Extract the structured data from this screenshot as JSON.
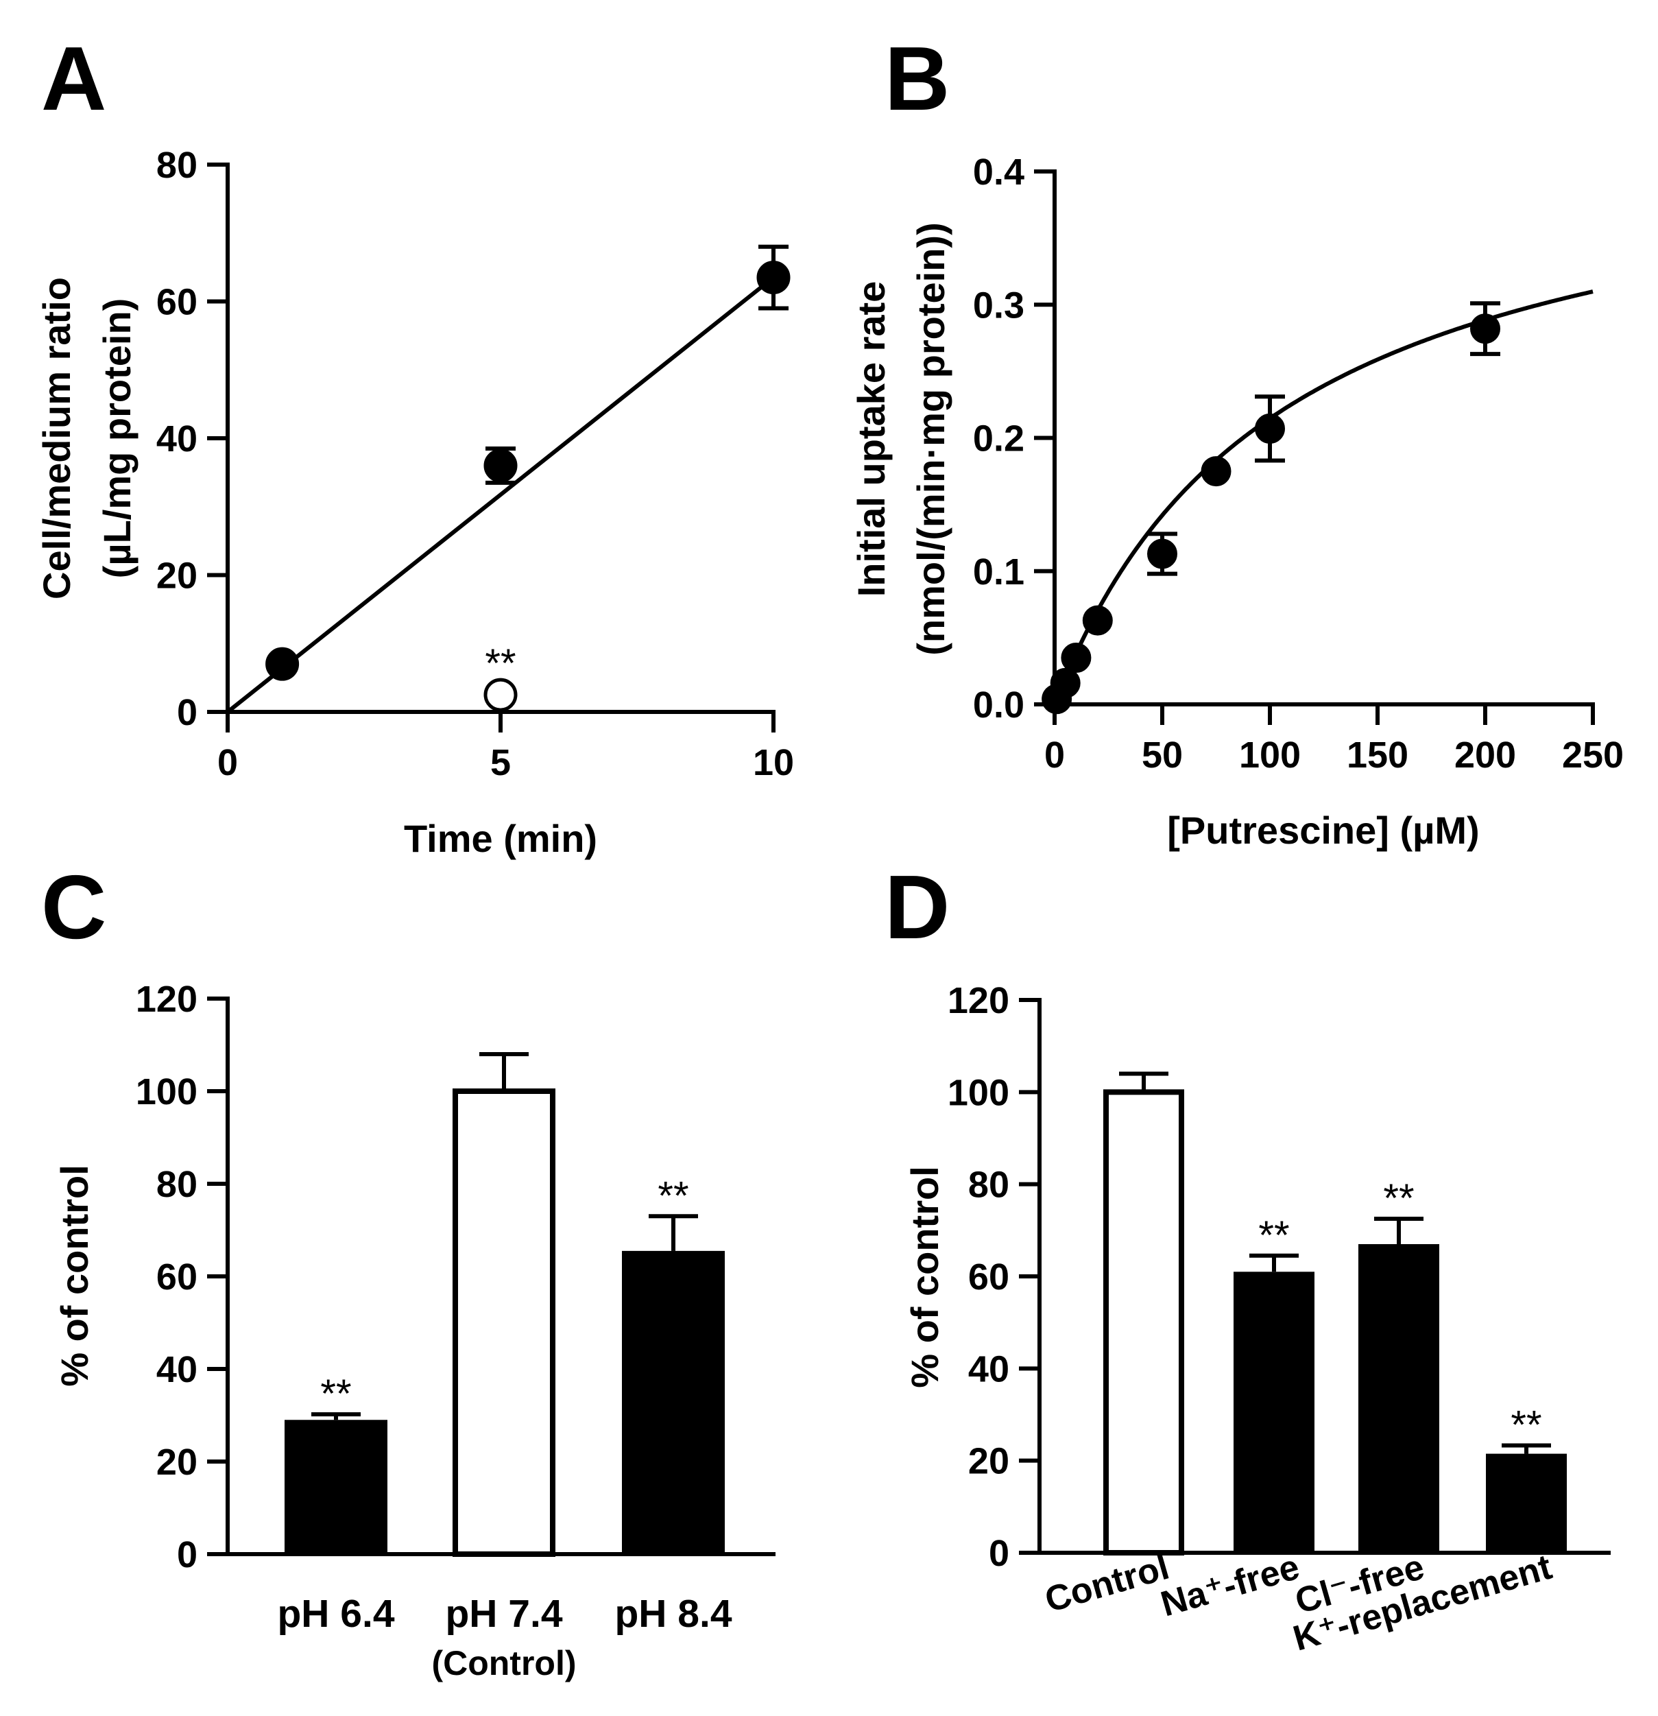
{
  "chart_data": [
    {
      "panel": "A",
      "type": "scatter",
      "xlabel": "Time (min)",
      "ylabel": [
        "Cell/medium ratio",
        "(µL/mg protein)"
      ],
      "xlim": [
        0,
        10
      ],
      "ylim": [
        0,
        80
      ],
      "xticks": [
        "0",
        "5",
        "10"
      ],
      "yticks": [
        "0",
        "20",
        "40",
        "60",
        "80"
      ],
      "series": [
        {
          "filled": true,
          "x": [
            1,
            5,
            10
          ],
          "y": [
            7,
            36,
            63.5
          ],
          "err": [
            0,
            2.5,
            4.5
          ],
          "fit": "linear",
          "fit_line": [
            [
              0,
              0
            ],
            [
              10,
              63.5
            ]
          ]
        },
        {
          "filled": false,
          "x": [
            5
          ],
          "y": [
            2.5
          ],
          "err": [
            0
          ],
          "annotation": "**"
        }
      ]
    },
    {
      "panel": "B",
      "type": "scatter",
      "xlabel": "[Putrescine] (µM)",
      "ylabel": [
        "Initial uptake rate",
        "(nmol/(min·mg protein))"
      ],
      "xlim": [
        0,
        250
      ],
      "ylim": [
        0,
        0.4
      ],
      "xticks": [
        "0",
        "50",
        "100",
        "150",
        "200",
        "250"
      ],
      "yticks": [
        "0.0",
        "0.1",
        "0.2",
        "0.3",
        "0.4"
      ],
      "series": [
        {
          "filled": true,
          "x": [
            1,
            5,
            10,
            20,
            50,
            75,
            100,
            200
          ],
          "y": [
            0.004,
            0.016,
            0.035,
            0.063,
            0.113,
            0.175,
            0.207,
            0.282
          ],
          "err": [
            0,
            0,
            0,
            0,
            0.015,
            0,
            0.024,
            0.019
          ],
          "fit": "saturable",
          "fit_params": {
            "vmax": 0.44,
            "km": 105
          }
        }
      ]
    },
    {
      "panel": "C",
      "type": "bar",
      "ylabel": "% of control",
      "ylim": [
        0,
        120
      ],
      "yticks": [
        "0",
        "20",
        "40",
        "60",
        "80",
        "100",
        "120"
      ],
      "categories": [
        "pH 6.4",
        "pH 7.4",
        "pH 8.4"
      ],
      "category_sublabels": [
        "",
        "(Control)",
        ""
      ],
      "values": [
        29,
        100,
        65.5
      ],
      "err": [
        1.2,
        8,
        7.5
      ],
      "filled": [
        true,
        false,
        true
      ],
      "annotations": [
        "**",
        "",
        "**"
      ]
    },
    {
      "panel": "D",
      "type": "bar",
      "ylabel": "% of control",
      "ylim": [
        0,
        120
      ],
      "yticks": [
        "0",
        "20",
        "40",
        "60",
        "80",
        "100",
        "120"
      ],
      "categories": [
        "Control",
        "Na⁺-free",
        "Cl⁻-free",
        "K⁺-replacement"
      ],
      "values": [
        100,
        61,
        67,
        21.5
      ],
      "err": [
        4,
        3.5,
        5.5,
        1.8
      ],
      "filled": [
        false,
        true,
        true,
        true
      ],
      "annotations": [
        "",
        "**",
        "**",
        "**"
      ]
    }
  ]
}
